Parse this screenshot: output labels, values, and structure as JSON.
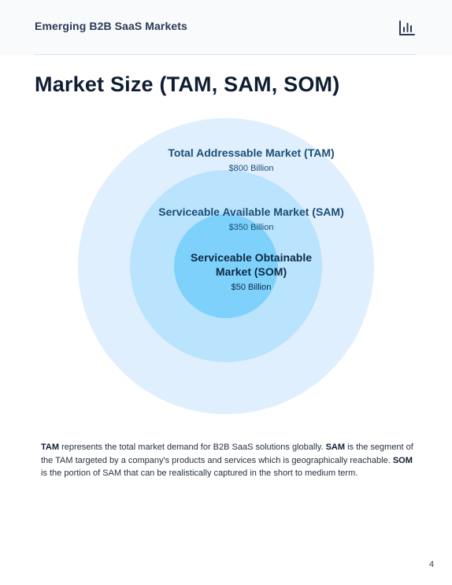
{
  "header": {
    "title": "Emerging B2B SaaS Markets",
    "icon": "bar-chart-icon"
  },
  "page_title": "Market Size (TAM, SAM, SOM)",
  "market_circles": {
    "tam": {
      "name": "Total Addressable Market (TAM)",
      "value": "$800 Billion",
      "color": "#e0effd"
    },
    "sam": {
      "name": "Serviceable Available Market (SAM)",
      "value": "$350 Billion",
      "color": "#bae3fd"
    },
    "som": {
      "name": "Serviceable Obtainable Market (SOM)",
      "value": "$50 Billion",
      "color": "#7dd1fb"
    }
  },
  "description": {
    "tam_term": "TAM",
    "tam_text": " represents the total market demand for B2B SaaS solutions globally. ",
    "sam_term": "SAM",
    "sam_text": " is the segment of the TAM targeted by a company's products and services which is geographically reachable. ",
    "som_term": "SOM",
    "som_text": " is the portion of SAM that can be realistically captured in the short to medium term."
  },
  "page_number": "4"
}
